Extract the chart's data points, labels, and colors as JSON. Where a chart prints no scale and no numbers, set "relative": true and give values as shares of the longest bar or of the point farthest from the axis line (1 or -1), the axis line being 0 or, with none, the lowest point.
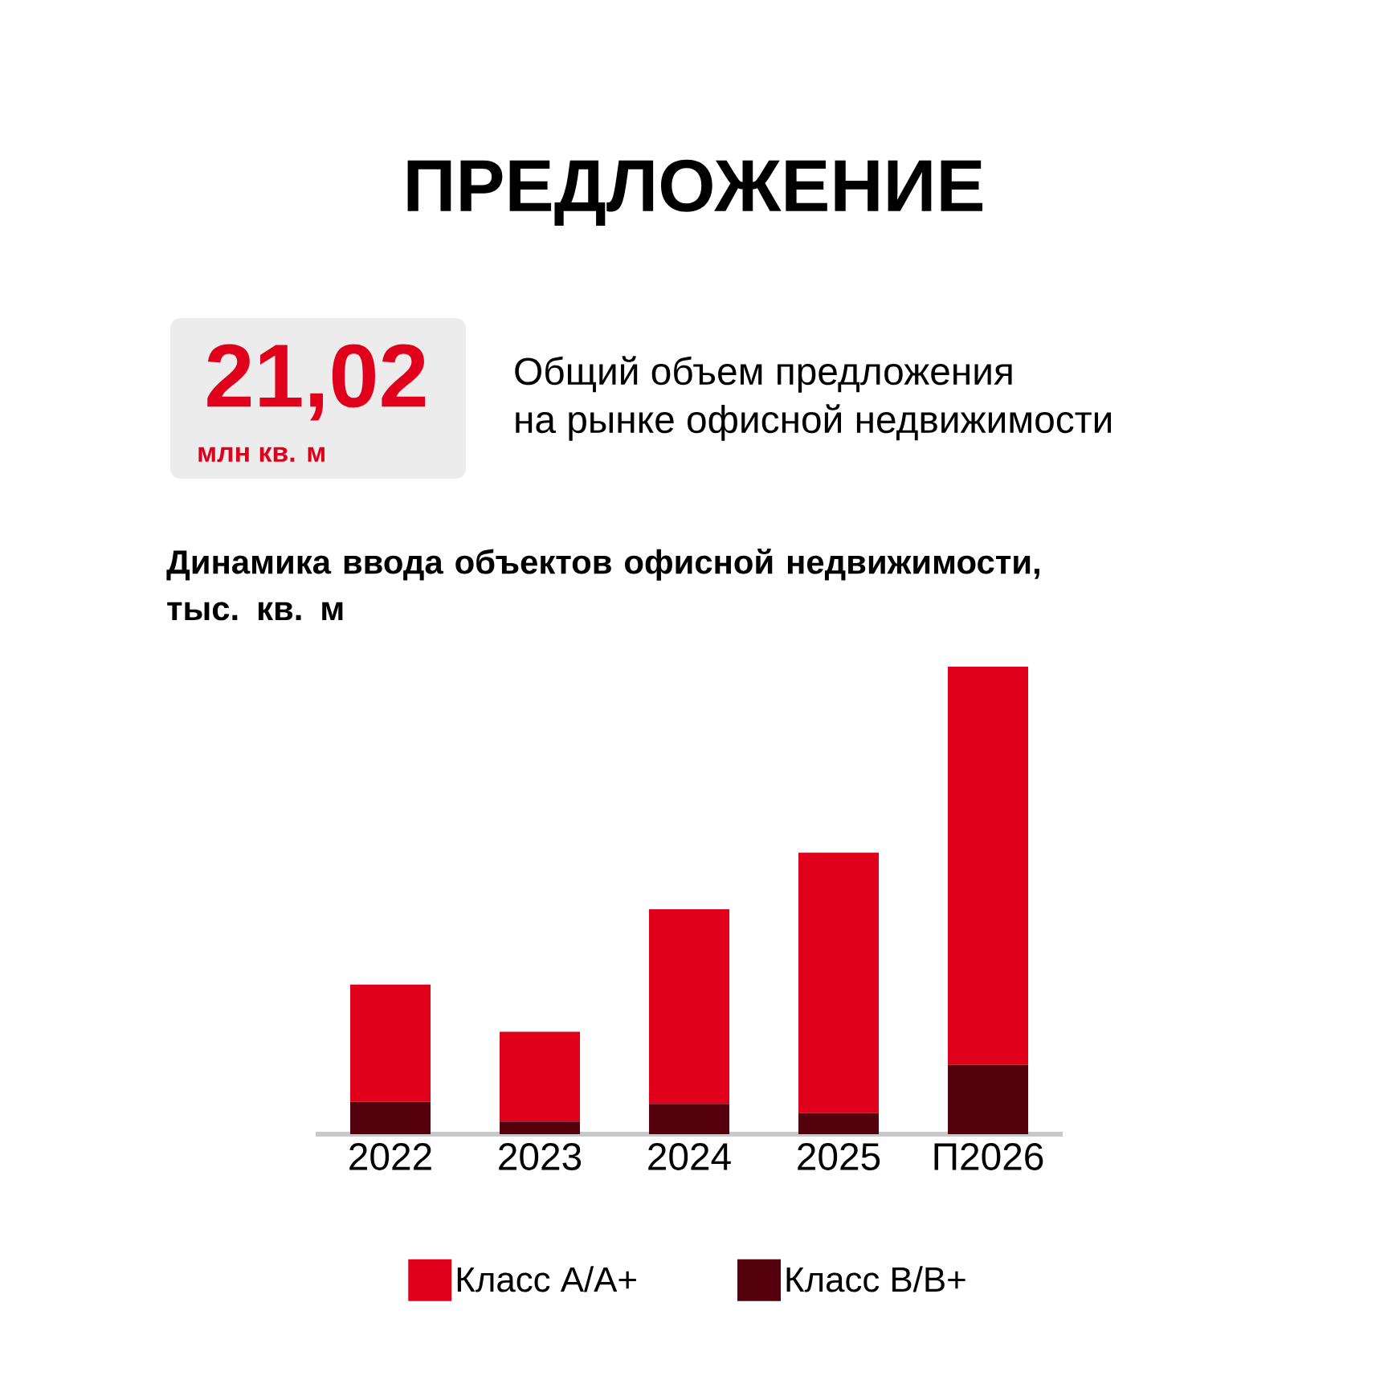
{
  "chart_data": {
    "type": "bar",
    "title": "ПРЕДЛОЖЕНИЕ",
    "subtitle": "Динамика ввода объектов офисной недвижимости, тыс. кв. м",
    "annotations": [
      "21,02",
      "млн кв. м",
      "Общий объем предложения",
      "на рынке офисной недвижимости"
    ],
    "categories": [
      "2022",
      "2023",
      "2024",
      "2025",
      "П2026"
    ],
    "stacked": true,
    "relative": true,
    "legend": "bottom",
    "series": [
      {
        "name": "Класс B/B+",
        "color": "#55000d",
        "values": [
          0.069,
          0.027,
          0.065,
          0.045,
          0.148
        ]
      },
      {
        "name": "Класс A/A+",
        "color": "#e0001b",
        "values": [
          0.251,
          0.192,
          0.416,
          0.557,
          0.852
        ]
      }
    ]
  }
}
